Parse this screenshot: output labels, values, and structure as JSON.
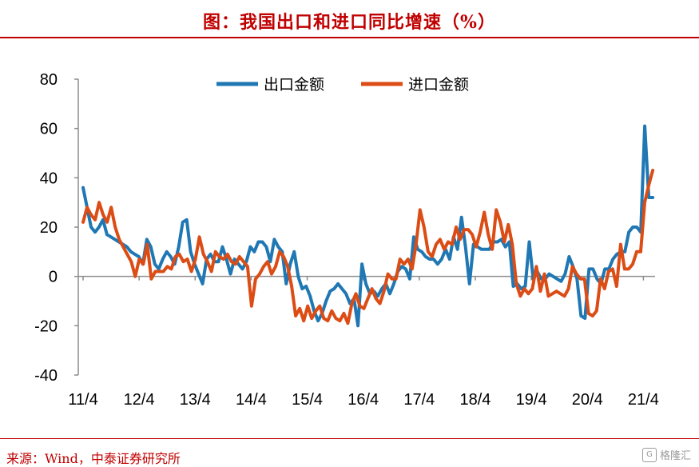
{
  "title": "图：我国出口和进口同比增速（%）",
  "source": "来源：Wind，中泰证券研究所",
  "watermark": "格隆汇",
  "chart_data": {
    "type": "line",
    "title": "图：我国出口和进口同比增速（%）",
    "xlabel": "",
    "ylabel": "",
    "ylim": [
      -40,
      80
    ],
    "yticks": [
      80,
      60,
      40,
      20,
      0,
      -20,
      -40
    ],
    "xticks": [
      "11/4",
      "12/4",
      "13/4",
      "14/4",
      "15/4",
      "16/4",
      "17/4",
      "18/4",
      "19/4",
      "20/4",
      "21/4"
    ],
    "grid": false,
    "legend_position": "top",
    "x_start": "11/4",
    "x_step_months": 1,
    "series": [
      {
        "name": "出口金额",
        "color": "#1f77b4",
        "values": [
          36,
          28,
          20,
          18,
          20,
          23,
          17,
          16,
          15,
          14,
          13,
          12,
          10,
          9,
          8,
          5,
          15,
          12,
          5,
          3,
          7,
          10,
          8,
          5,
          12,
          22,
          23,
          10,
          5,
          1,
          -3,
          7,
          9,
          6,
          6,
          12,
          7,
          1,
          7,
          5,
          3,
          6,
          12,
          10,
          14,
          14,
          12,
          6,
          15,
          12,
          10,
          -3,
          5,
          10,
          0,
          -5,
          -4,
          -8,
          -14,
          -18,
          -15,
          -10,
          -6,
          -5,
          -3,
          -5,
          -7,
          -11,
          -9,
          -20,
          5,
          -3,
          -7,
          -6,
          -8,
          -5,
          -3,
          -7,
          -3,
          2,
          4,
          3,
          -1,
          16,
          11,
          10,
          8,
          7,
          7,
          5,
          7,
          11,
          7,
          16,
          11,
          24,
          12,
          -3,
          13,
          12,
          11,
          11,
          11,
          14,
          14,
          15,
          12,
          14,
          -4,
          -3,
          -5,
          -4,
          14,
          -1,
          2,
          -1,
          -1,
          1,
          0,
          -1,
          -2,
          1,
          8,
          4,
          -1,
          -16,
          -17,
          3,
          3,
          -1,
          -3,
          3,
          3,
          7,
          9,
          10,
          10,
          18,
          20,
          20,
          18,
          61,
          32,
          32
        ]
      },
      {
        "name": "进口金额",
        "color": "#dc4c15",
        "values": [
          22,
          28,
          25,
          23,
          30,
          25,
          22,
          28,
          20,
          15,
          12,
          9,
          6,
          0,
          7,
          5,
          13,
          -1,
          2,
          2,
          2,
          4,
          3,
          8,
          9,
          6,
          7,
          2,
          7,
          16,
          9,
          6,
          2,
          10,
          8,
          7,
          9,
          6,
          5,
          8,
          6,
          4,
          -12,
          -1,
          1,
          4,
          6,
          1,
          4,
          10,
          8,
          4,
          -4,
          -16,
          -13,
          -18,
          -12,
          -17,
          -14,
          -12,
          -17,
          -18,
          -14,
          -17,
          -18,
          -15,
          -19,
          -11,
          -7,
          -12,
          -13,
          -9,
          -5,
          -9,
          -11,
          -6,
          1,
          -1,
          -1,
          7,
          5,
          7,
          3,
          13,
          27,
          20,
          10,
          8,
          13,
          15,
          11,
          14,
          13,
          20,
          15,
          19,
          19,
          17,
          12,
          18,
          26,
          17,
          11,
          27,
          22,
          14,
          21,
          13,
          -3,
          -8,
          -5,
          -7,
          -5,
          4,
          -6,
          1,
          -8,
          -7,
          -6,
          -7,
          -8,
          -5,
          4,
          1,
          -1,
          -1,
          -15,
          -16,
          -14,
          -1,
          -5,
          2,
          3,
          -4,
          13,
          3,
          3,
          5,
          10,
          10,
          30,
          37,
          43
        ]
      }
    ]
  }
}
